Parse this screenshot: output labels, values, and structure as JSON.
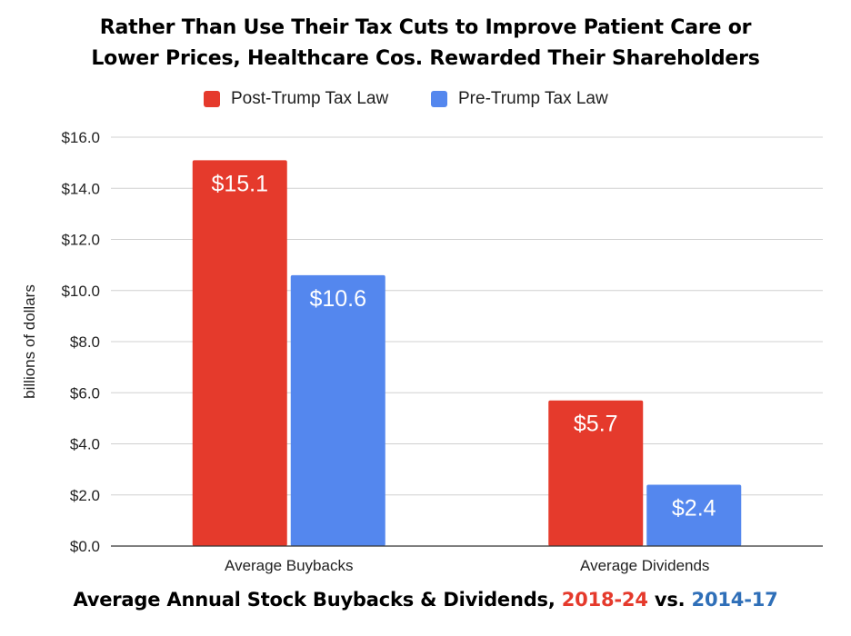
{
  "title_lines": [
    "Rather Than Use Their Tax Cuts to Improve Patient Care or",
    "Lower Prices, Healthcare Cos. Rewarded Their Shareholders"
  ],
  "subtitle": {
    "prefix": "Average Annual Stock Buybacks & Dividends, ",
    "post_period": "2018-24",
    "middle": " vs. ",
    "pre_period": "2014-17"
  },
  "colors": {
    "post": "#e53a2c",
    "pre": "#5487ee",
    "post_text": "#e53a2c",
    "pre_text": "#2f6fb8"
  },
  "chart_data": {
    "type": "bar",
    "title": "Rather Than Use Their Tax Cuts to Improve Patient Care or Lower Prices, Healthcare Cos. Rewarded Their Shareholders",
    "categories": [
      "Average Buybacks",
      "Average Dividends"
    ],
    "series": [
      {
        "name": "Post-Trump Tax Law",
        "values": [
          15.1,
          5.7
        ],
        "labels": [
          "$15.1",
          "$5.7"
        ]
      },
      {
        "name": "Pre-Trump Tax Law",
        "values": [
          10.6,
          2.4
        ],
        "labels": [
          "$10.6",
          "$2.4"
        ]
      }
    ],
    "xlabel": "",
    "ylabel": "billions of dollars",
    "ylim": [
      0,
      16
    ],
    "yticks": [
      0,
      2,
      4,
      6,
      8,
      10,
      12,
      14,
      16
    ],
    "ytick_labels": [
      "$0.0",
      "$2.0",
      "$4.0",
      "$6.0",
      "$8.0",
      "$10.0",
      "$12.0",
      "$14.0",
      "$16.0"
    ],
    "grid": true,
    "legend_position": "top"
  }
}
